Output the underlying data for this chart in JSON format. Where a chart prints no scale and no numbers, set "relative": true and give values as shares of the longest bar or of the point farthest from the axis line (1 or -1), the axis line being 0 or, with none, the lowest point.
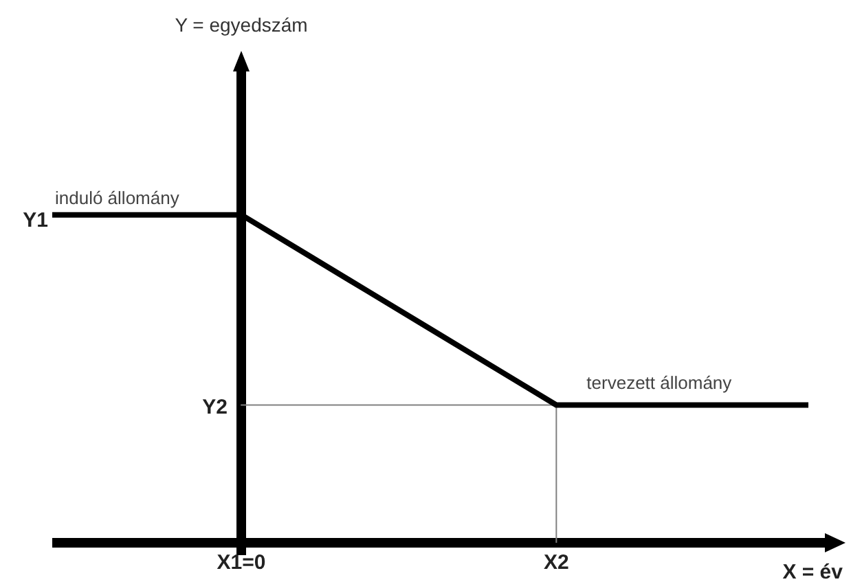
{
  "chart_data": {
    "type": "line",
    "xlabel": "X = év",
    "relative": true,
    "categories": [
      null,
      null,
      null,
      "X1=0",
      null,
      null,
      null,
      null,
      "X2",
      null,
      null,
      null,
      null
    ],
    "series": [
      {
        "color": "#000000",
        "values": [
          1,
          1,
          1,
          1,
          0.884,
          0.768,
          0.652,
          0.536,
          0.42,
          0.42,
          0.42,
          0.42,
          0.42
        ]
      },
      {
        "color": "#808080",
        "x": [
          "X1=0",
          "X2",
          "X2"
        ],
        "values": [
          0.42,
          0.42,
          0
        ]
      }
    ],
    "annotations": [
      "Y = egyedszám",
      "Y1",
      {
        "text": "Y2",
        "x": "X1=0",
        "y": 0.42
      },
      {
        "text": "induló állomány",
        "y": 1
      },
      {
        "text": "tervezett állomány",
        "x": "X2",
        "y": 0.42
      }
    ],
    "legend": false,
    "marker": "none"
  }
}
